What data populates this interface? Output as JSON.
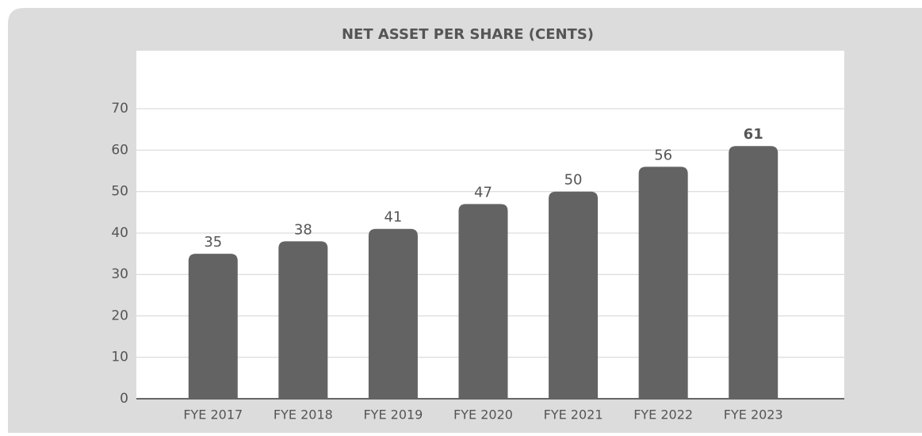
{
  "chart_data": {
    "type": "bar",
    "title": "NET ASSET PER SHARE (CENTS)",
    "categories": [
      "FYE 2017",
      "FYE 2018",
      "FYE 2019",
      "FYE 2020",
      "FYE 2021",
      "FYE 2022",
      "FYE 2023"
    ],
    "values": [
      35,
      38,
      41,
      47,
      50,
      56,
      61
    ],
    "color": "#636363",
    "ylim": [
      0,
      84
    ],
    "yticks": [
      0,
      10,
      20,
      30,
      40,
      50,
      60,
      70
    ],
    "grid": true
  }
}
